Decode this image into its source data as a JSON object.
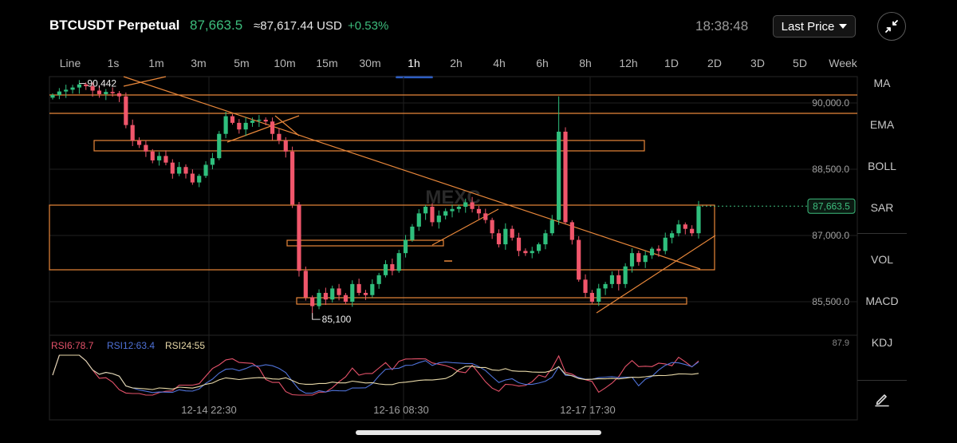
{
  "header": {
    "symbol": "BTCUSDT Perpetual",
    "last_price": "87,663.5",
    "index_price": "≈87,617.44 USD",
    "change_pct": "+0.53%",
    "time": "18:38:48",
    "price_type": "Last Price"
  },
  "tabs": [
    "Line",
    "1s",
    "1m",
    "3m",
    "5m",
    "10m",
    "15m",
    "30m",
    "1h",
    "2h",
    "4h",
    "6h",
    "8h",
    "12h",
    "1D",
    "2D",
    "3D",
    "5D",
    "Week"
  ],
  "active_tab": "1h",
  "sidebar": {
    "overlays": [
      "MA",
      "EMA",
      "BOLL",
      "SAR"
    ],
    "subcharts": [
      "VOL",
      "MACD",
      "KDJ"
    ],
    "draw_icon": "pencil-icon"
  },
  "chart_data": {
    "type": "candlestick",
    "symbol": "BTCUSDT Perpetual",
    "interval": "1h",
    "price_axis_labels": [
      "90,000.0",
      "88,500.0",
      "87,000.0",
      "85,500.0"
    ],
    "price_axis_values": [
      90000,
      88500,
      87000,
      85500
    ],
    "current_price_label": "87,663.5",
    "current_price": 87663.5,
    "high_marker": {
      "label": "90,442",
      "value": 90442
    },
    "low_marker": {
      "label": "85,100",
      "value": 85100
    },
    "time_axis_labels": [
      "12-14 22:30",
      "12-16 08:30",
      "12-17 17:30"
    ],
    "closes": [
      90180,
      90260,
      90300,
      90350,
      90420,
      90380,
      90280,
      90200,
      90250,
      90220,
      90150,
      89500,
      89150,
      89050,
      88900,
      88700,
      88800,
      88650,
      88400,
      88550,
      88400,
      88200,
      88350,
      88600,
      88750,
      89300,
      89700,
      89550,
      89400,
      89550,
      89600,
      89620,
      89580,
      89300,
      89150,
      88900,
      87700,
      86200,
      85600,
      85400,
      85700,
      85550,
      85800,
      85650,
      85500,
      85900,
      85700,
      85650,
      85900,
      86100,
      86350,
      86200,
      86600,
      86900,
      87200,
      87500,
      87650,
      87300,
      87450,
      87550,
      87600,
      87650,
      87750,
      87600,
      87500,
      87350,
      87050,
      86800,
      87150,
      86950,
      86650,
      86600,
      86650,
      86800,
      87050,
      87350,
      89350,
      87300,
      86900,
      86000,
      85700,
      85500,
      85800,
      85900,
      86100,
      85900,
      86300,
      86600,
      86400,
      86550,
      86700,
      86650,
      86950,
      87050,
      87250,
      87150,
      87050,
      87663.5
    ],
    "rsi": {
      "labels": [
        "RSI6:78.7",
        "RSI12:63.4",
        "RSI24:55"
      ],
      "colors": [
        "#e5526a",
        "#4f72d8",
        "#e8d9a8"
      ],
      "axis_label": "87.9"
    },
    "grid": true
  },
  "colors": {
    "up": "#2fbf7d",
    "down": "#f0566b",
    "drawing": "#e8873a",
    "accent": "#2d6cf0",
    "price_green": "#3dbd7d",
    "watermark": "MEXC"
  }
}
